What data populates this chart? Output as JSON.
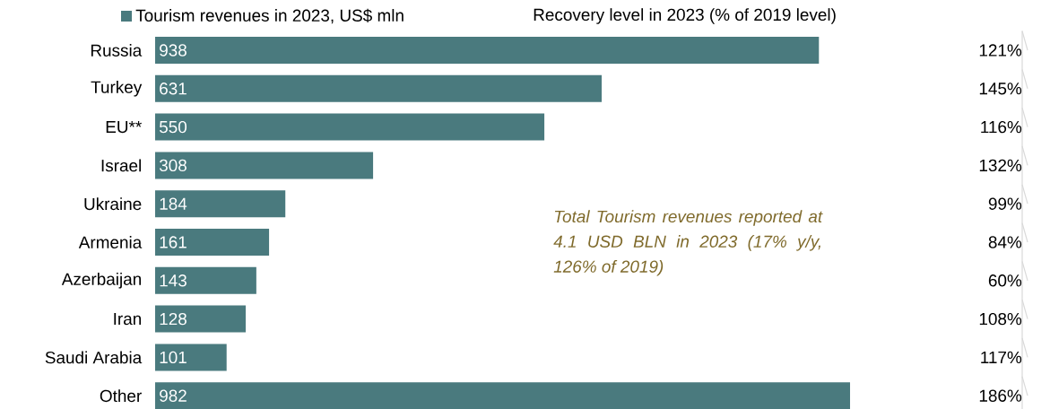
{
  "chart_data": {
    "type": "bar",
    "orientation": "horizontal",
    "categories": [
      "Russia",
      "Turkey",
      "EU**",
      "Israel",
      "Ukraine",
      "Armenia",
      "Azerbaijan",
      "Iran",
      "Saudi Arabia",
      "Other"
    ],
    "series": [
      {
        "name": "Tourism revenues in 2023, US$ mln",
        "color": "#4a7a7e",
        "values": [
          938,
          631,
          550,
          308,
          184,
          161,
          143,
          128,
          101,
          982
        ]
      }
    ],
    "data_labels": true,
    "legend": "top",
    "annotations": [
      "Recovery level in 2023 (% of 2019 level)",
      "121%",
      "145%",
      "116%",
      "132%",
      "99%",
      "84%",
      "60%",
      "108%",
      "117%",
      "186%",
      "Total Tourism revenues reported at 4.1 USD BLN in 2023 (17% y/y, 126% of 2019)"
    ]
  }
}
